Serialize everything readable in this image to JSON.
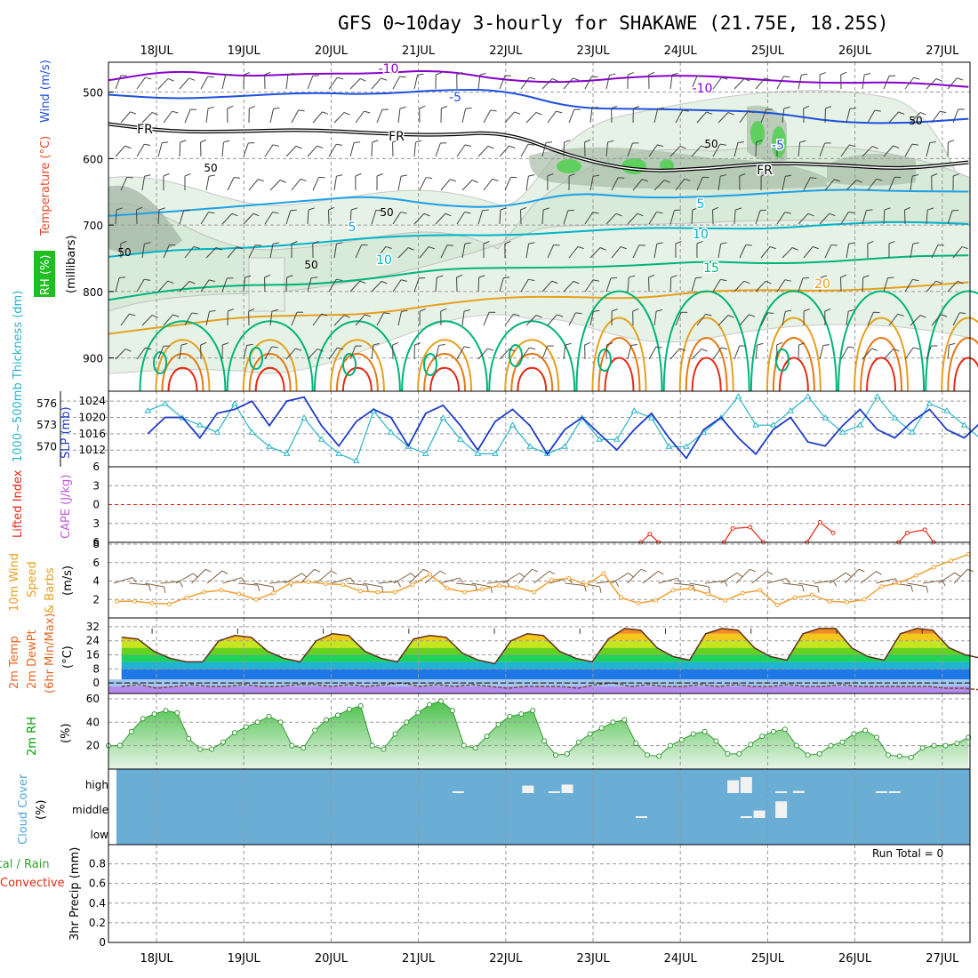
{
  "title": "GFS 0~10day 3-hourly for SHAKAWE (21.75E, 18.25S)",
  "days": [
    "18JUL",
    "19JUL",
    "20JUL",
    "21JUL",
    "22JUL",
    "23JUL",
    "24JUL",
    "25JUL",
    "26JUL",
    "27JUL"
  ],
  "colors": {
    "purple": "#8800cc",
    "blue_m5": "#1e50dc",
    "freeze": "#000000",
    "blue5": "#1ea0e6",
    "cyan10": "#00b4c8",
    "teal15": "#00b478",
    "orange20": "#e6a01e",
    "orange25": "#e67814",
    "red30": "#e62814",
    "slp": "#1e3cc8",
    "thick": "#28b4c8",
    "li": "#e62814",
    "wind_speed": "#f0a030",
    "barb": "#806040",
    "cloud": "#6aadd5",
    "rh_line": "#00a000",
    "precip_label": "#30a030"
  },
  "chart_data": [
    {
      "type": "contour",
      "panel": "upper-air",
      "ylabel": "(millibars)",
      "left_labels": [
        "RH (%)",
        "Temperature (°C)",
        "Wind (m/s)"
      ],
      "y_ticks": [
        500,
        600,
        700,
        800,
        900
      ],
      "ylim": [
        950,
        455
      ],
      "temp_contours": [
        {
          "value": -10,
          "pressure_hpa": [
            480,
            470,
            478,
            468,
            472,
            470,
            482,
            482,
            478,
            478,
            480,
            484,
            488,
            494
          ],
          "labels": [
            "-10",
            "-10"
          ]
        },
        {
          "value": -5,
          "pressure_hpa": [
            500,
            510,
            510,
            500,
            500,
            498,
            500,
            522,
            522,
            530,
            532,
            542,
            546,
            544
          ],
          "labels": [
            "-5",
            "-5"
          ]
        },
        {
          "value": 0,
          "pressure_hpa": [
            548,
            556,
            560,
            560,
            560,
            562,
            562,
            600,
            616,
            614,
            610,
            610,
            612,
            606
          ],
          "labels": [
            "FR",
            "FR",
            "FR"
          ]
        },
        {
          "value": 5,
          "pressure_hpa": [
            690,
            678,
            668,
            666,
            658,
            668,
            672,
            654,
            660,
            654,
            652,
            650,
            648,
            646
          ],
          "labels": [
            "5",
            "5"
          ]
        },
        {
          "value": 10,
          "pressure_hpa": [
            750,
            740,
            732,
            726,
            722,
            716,
            712,
            710,
            708,
            704,
            702,
            700,
            698,
            696
          ],
          "labels": [
            "10",
            "10"
          ]
        },
        {
          "value": 15,
          "pressure_hpa": [
            810,
            800,
            792,
            786,
            780,
            770,
            764,
            760,
            762,
            758,
            756,
            752,
            750,
            748
          ],
          "labels": [
            "15"
          ]
        },
        {
          "value": 20,
          "pressure_hpa": [
            860,
            850,
            842,
            836,
            830,
            820,
            812,
            806,
            808,
            802,
            800,
            796,
            792,
            790
          ],
          "labels": [
            "20"
          ]
        }
      ],
      "rh_contour_labels": [
        "50",
        "50",
        "50",
        "50",
        "50",
        "50"
      ],
      "rh_shades_pct": [
        30,
        50,
        70,
        90
      ]
    },
    {
      "type": "line",
      "panel": "slp-thickness",
      "left_labels": [
        "1000~500mb Thickness (dm)",
        "SLP (mb)"
      ],
      "y_ticks_slp": [
        1012,
        1016,
        1020,
        1024
      ],
      "y_ticks_thick": [
        570,
        573,
        576
      ],
      "ylim_slp": [
        1009,
        1026
      ],
      "series": [
        {
          "name": "SLP (mb)",
          "values": [
            1016,
            1020,
            1020,
            1015,
            1021,
            1022,
            1024,
            1018,
            1024,
            1025,
            1018,
            1013,
            1019,
            1022,
            1020,
            1013,
            1021,
            1023,
            1018,
            1012,
            1019,
            1022,
            1018,
            1011,
            1017,
            1020,
            1016,
            1012,
            1017,
            1021,
            1015,
            1010,
            1017,
            1020,
            1015,
            1011,
            1017,
            1020,
            1014,
            1013,
            1018,
            1022,
            1017,
            1015,
            1019,
            1022,
            1017,
            1015,
            1019,
            1023
          ]
        },
        {
          "name": "Thickness (dm)",
          "values": [
            575,
            576,
            574,
            573,
            572,
            576,
            572,
            570,
            569,
            574,
            571,
            569,
            568,
            575,
            572,
            570,
            569,
            574,
            571,
            569,
            569,
            573,
            570,
            569,
            570,
            574,
            571,
            571,
            575,
            574,
            570,
            570,
            572,
            574,
            577,
            573,
            573,
            575,
            577,
            574,
            572,
            573,
            577,
            574,
            572,
            576,
            575,
            573,
            571,
            570
          ]
        }
      ]
    },
    {
      "type": "line",
      "panel": "lifted-index-cape",
      "left_labels": [
        "Lifted Index",
        "CAPE (J/kg)"
      ],
      "y_ticks": [
        -6,
        -3,
        0,
        3,
        6
      ],
      "ylim": [
        6,
        -6
      ],
      "series": [
        {
          "name": "Lifted Index",
          "segments": [
            [
              [
                23.55,
                6.0
              ],
              [
                23.65,
                4.7
              ],
              [
                23.75,
                6.0
              ]
            ],
            [
              [
                24.5,
                6.0
              ],
              [
                24.6,
                3.8
              ],
              [
                24.8,
                3.6
              ],
              [
                24.95,
                6.0
              ]
            ],
            [
              [
                25.45,
                6.0
              ],
              [
                25.6,
                2.8
              ],
              [
                25.75,
                4.5
              ]
            ],
            [
              [
                26.5,
                6.0
              ],
              [
                26.6,
                4.5
              ],
              [
                26.8,
                4.0
              ],
              [
                26.9,
                6.0
              ]
            ]
          ]
        }
      ]
    },
    {
      "type": "line",
      "panel": "10m-wind",
      "left_labels": [
        "10m Wind",
        "Speed",
        "& Barbs"
      ],
      "ylabel": "(m/s)",
      "y_ticks": [
        2,
        4,
        6,
        8
      ],
      "ylim": [
        0,
        8
      ],
      "series": [
        {
          "name": "Speed (m/s)",
          "values": [
            1.8,
            1.8,
            1.6,
            1.5,
            2.2,
            2.8,
            3.0,
            2.6,
            2.0,
            2.7,
            3.8,
            3.9,
            3.7,
            3.6,
            2.9,
            2.8,
            2.8,
            3.6,
            4.7,
            3.2,
            2.8,
            3.1,
            3.5,
            3.3,
            2.8,
            4.1,
            4.3,
            3.6,
            4.8,
            2.2,
            1.6,
            1.9,
            3.0,
            3.2,
            2.6,
            1.9,
            2.7,
            3.0,
            1.4,
            2.2,
            2.5,
            1.8,
            1.7,
            2.0,
            3.4,
            3.8,
            4.6,
            5.5,
            6.2,
            6.9
          ]
        }
      ]
    },
    {
      "type": "area",
      "panel": "2m-temp",
      "left_labels": [
        "2m Temp",
        "2m DewPt",
        "(6hr Min/Max)"
      ],
      "ylabel": "(°C)",
      "y_ticks": [
        0,
        8,
        16,
        24,
        32
      ],
      "ylim": [
        -6,
        36
      ],
      "series": [
        {
          "name": "2m Temp",
          "values": [
            26,
            25,
            18,
            14,
            12,
            12,
            24,
            27,
            26,
            18,
            14,
            12,
            24,
            28,
            27,
            18,
            14,
            12,
            25,
            27,
            26,
            17,
            13,
            11,
            24,
            28,
            27,
            18,
            14,
            12,
            25,
            31,
            30,
            20,
            15,
            13,
            28,
            31,
            30,
            20,
            15,
            13,
            28,
            31,
            31,
            20,
            15,
            13,
            28,
            31,
            30,
            20,
            16,
            14
          ]
        },
        {
          "name": "2m DewPt",
          "values": [
            -2,
            -1,
            -3,
            -2,
            -1,
            -2,
            -2,
            -1,
            -2,
            -2,
            -1,
            -1,
            -2,
            -1,
            -2,
            -1,
            0,
            -2,
            -1,
            -2,
            -1,
            -2,
            -3,
            -2,
            -2,
            -2,
            -3,
            -1,
            0,
            -2,
            -1,
            -2,
            -2,
            -1,
            -2,
            -1,
            -2,
            -2,
            -1,
            -2,
            -2,
            -1,
            -2,
            -2,
            -2,
            -2,
            -2,
            -3,
            -3,
            -4
          ]
        }
      ]
    },
    {
      "type": "area",
      "panel": "2m-rh",
      "left_labels": [
        "2m RH"
      ],
      "ylabel": "(%)",
      "y_ticks": [
        20,
        40,
        60
      ],
      "ylim": [
        0,
        63
      ],
      "series": [
        {
          "name": "2m RH (%)",
          "values": [
            20,
            20,
            32,
            43,
            47,
            50,
            48,
            26,
            17,
            17,
            23,
            31,
            36,
            40,
            45,
            40,
            20,
            18,
            33,
            42,
            46,
            51,
            54,
            20,
            17,
            30,
            40,
            48,
            55,
            58,
            50,
            20,
            18,
            28,
            38,
            45,
            47,
            50,
            24,
            12,
            13,
            23,
            30,
            35,
            40,
            42,
            22,
            12,
            11,
            20,
            25,
            30,
            32,
            24,
            13,
            13,
            21,
            28,
            32,
            34,
            20,
            12,
            13,
            20,
            23,
            30,
            33,
            27,
            12,
            11,
            10,
            18,
            20,
            20,
            22,
            27
          ]
        }
      ]
    },
    {
      "type": "bar",
      "panel": "cloud-cover",
      "left_labels": [
        "Cloud Cover",
        "(%)"
      ],
      "y_categories": [
        "high",
        "middle",
        "low"
      ],
      "bars": [
        {
          "level": "high",
          "day": 21.45,
          "pct": 5
        },
        {
          "level": "high",
          "day": 22.25,
          "pct": 35
        },
        {
          "level": "high",
          "day": 22.55,
          "pct": 8
        },
        {
          "level": "high",
          "day": 22.7,
          "pct": 40
        },
        {
          "level": "high",
          "day": 24.6,
          "pct": 60
        },
        {
          "level": "high",
          "day": 24.75,
          "pct": 75
        },
        {
          "level": "high",
          "day": 25.15,
          "pct": 8
        },
        {
          "level": "high",
          "day": 25.35,
          "pct": 10
        },
        {
          "level": "high",
          "day": 26.3,
          "pct": 8
        },
        {
          "level": "high",
          "day": 26.45,
          "pct": 8
        },
        {
          "level": "middle",
          "day": 23.55,
          "pct": 3
        },
        {
          "level": "middle",
          "day": 24.75,
          "pct": 5
        },
        {
          "level": "middle",
          "day": 24.9,
          "pct": 35
        },
        {
          "level": "middle",
          "day": 25.15,
          "pct": 78
        }
      ]
    },
    {
      "type": "bar",
      "panel": "3hr-precip",
      "left_labels": [
        "Total / Rain",
        "Convective"
      ],
      "ylabel": "3hr Precip (mm)",
      "y_ticks": [
        0,
        0.2,
        0.4,
        0.6,
        0.8
      ],
      "ylim": [
        0,
        0.95
      ],
      "run_total": "Run Total = 0",
      "values": []
    }
  ]
}
